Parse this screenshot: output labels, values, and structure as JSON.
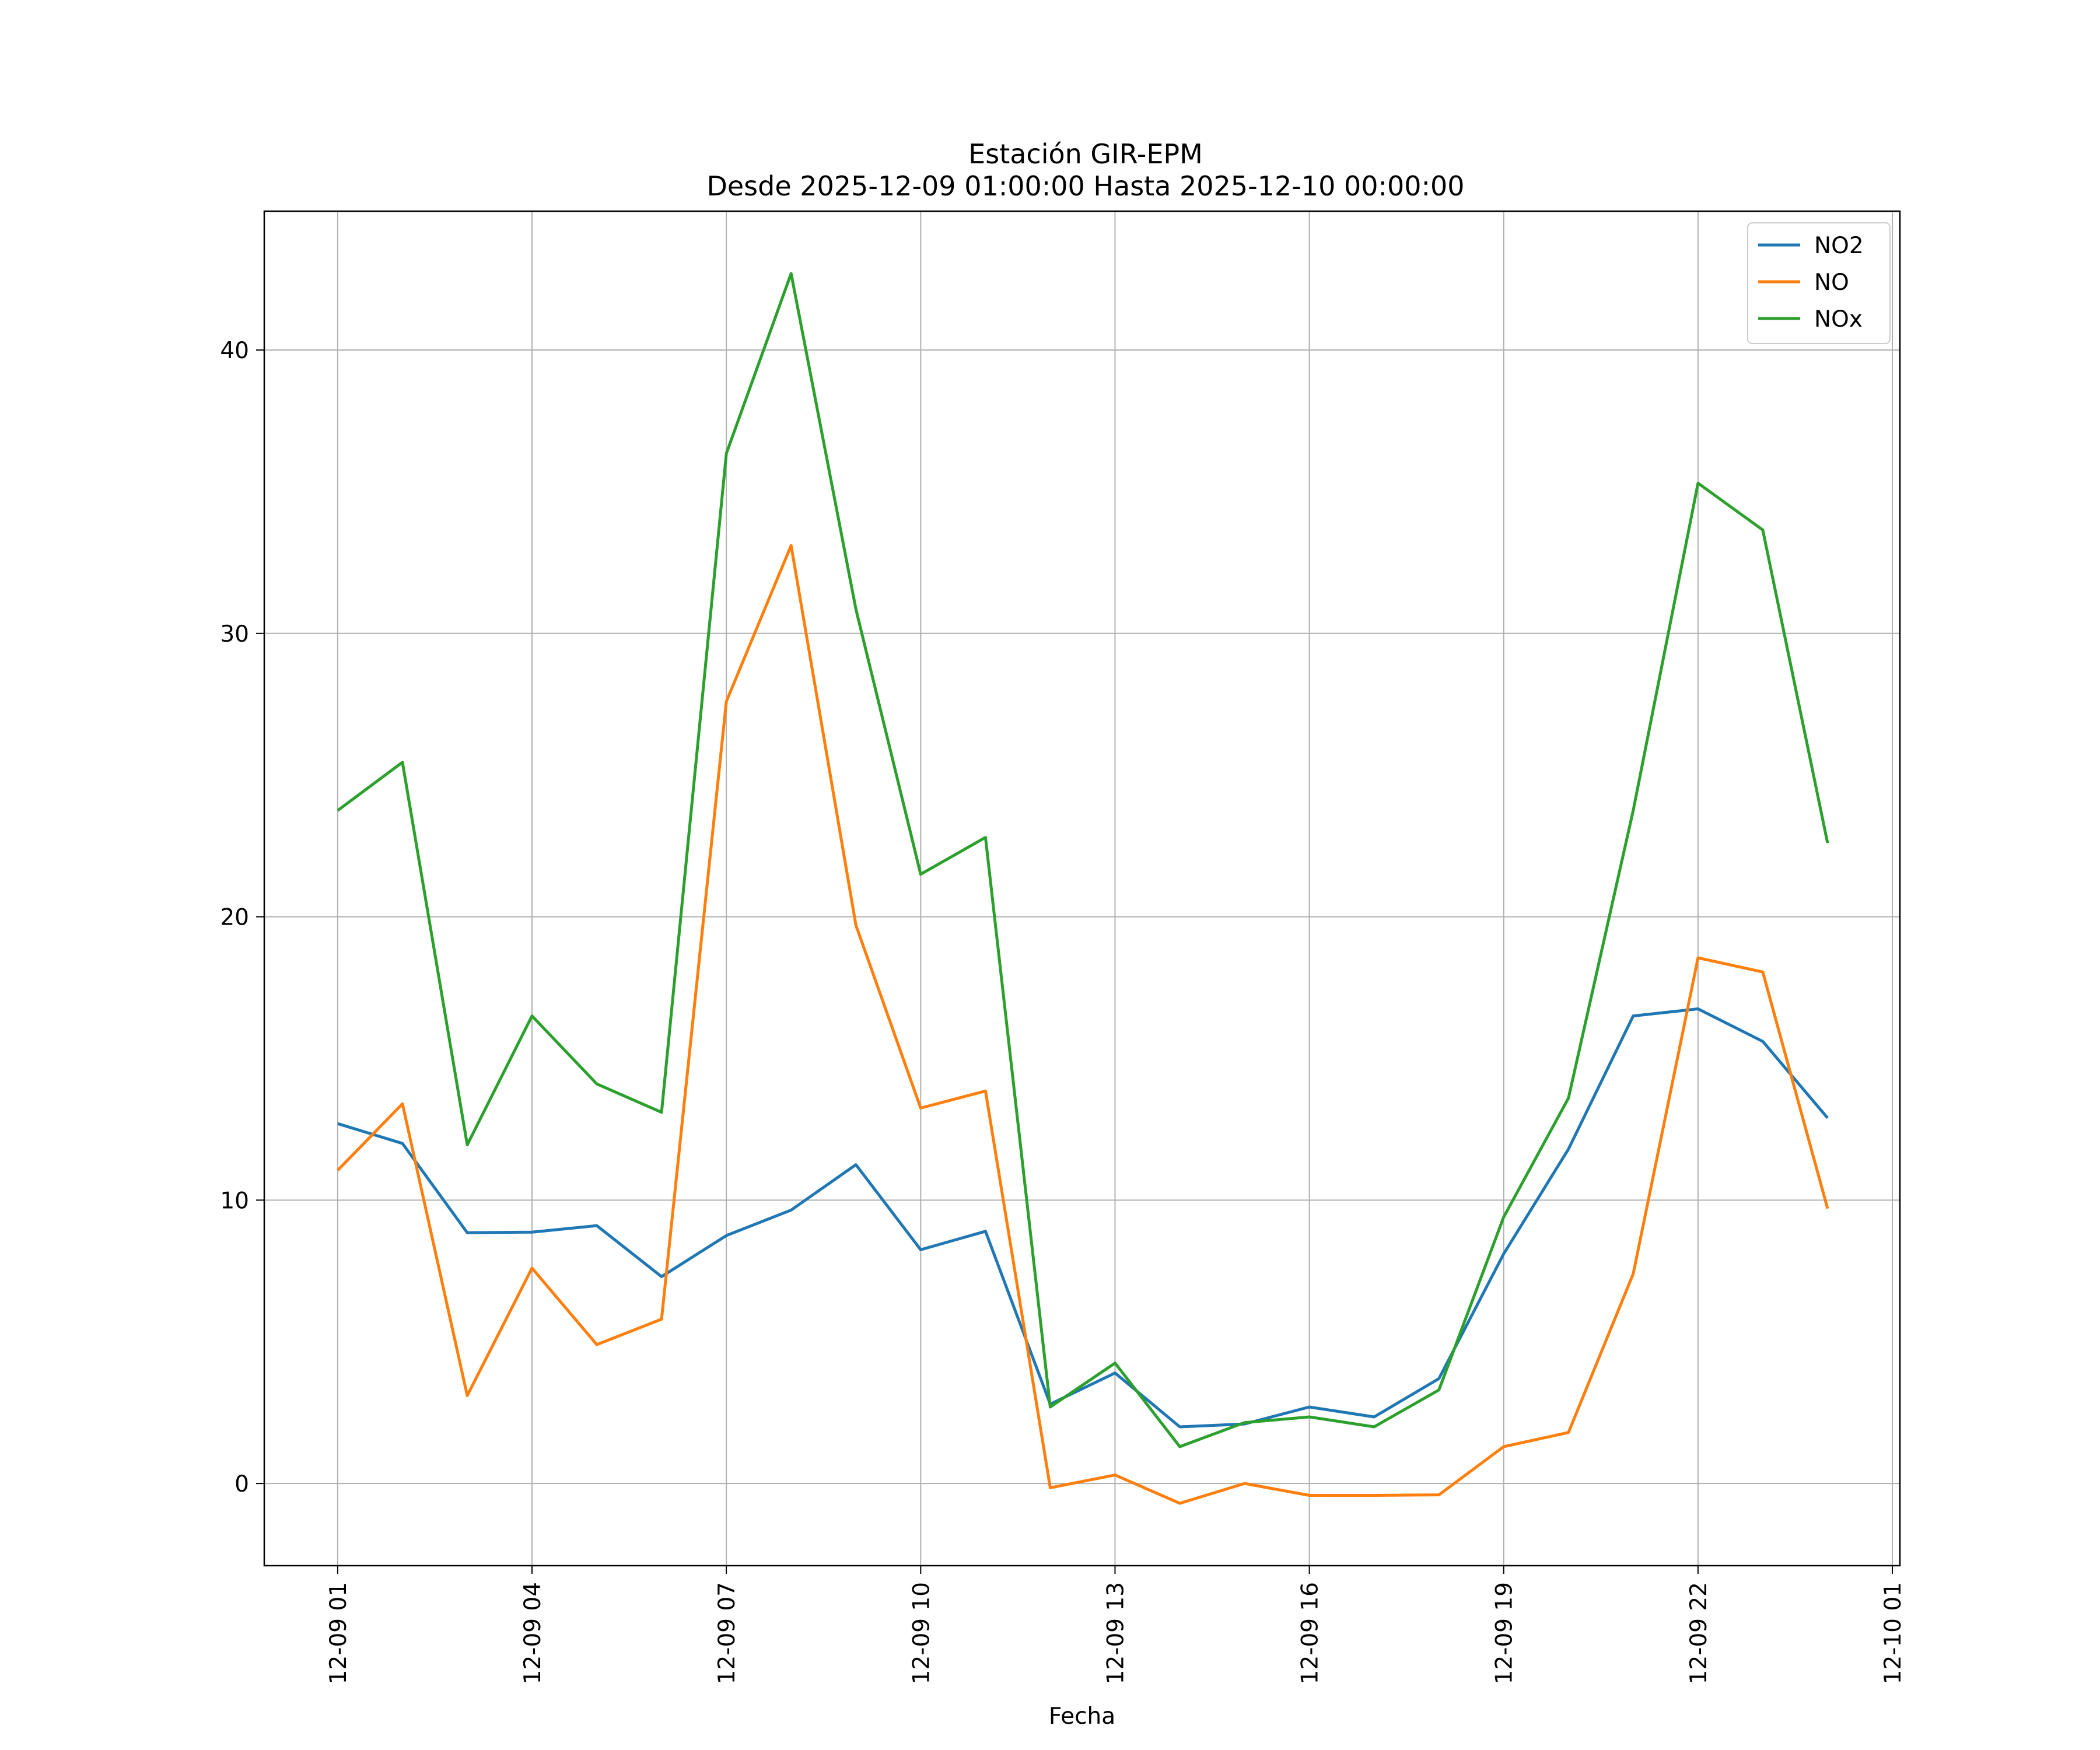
{
  "chart_data": {
    "type": "line",
    "title": "Estación GIR-EPM",
    "subtitle": "Desde 2025-12-09 01:00:00 Hasta 2025-12-10 00:00:00",
    "xlabel": "Fecha",
    "ylabel": "",
    "x": [
      "2025-12-09 01:00",
      "2025-12-09 02:00",
      "2025-12-09 03:00",
      "2025-12-09 04:00",
      "2025-12-09 05:00",
      "2025-12-09 06:00",
      "2025-12-09 07:00",
      "2025-12-09 08:00",
      "2025-12-09 09:00",
      "2025-12-09 10:00",
      "2025-12-09 11:00",
      "2025-12-09 12:00",
      "2025-12-09 13:00",
      "2025-12-09 14:00",
      "2025-12-09 15:00",
      "2025-12-09 16:00",
      "2025-12-09 17:00",
      "2025-12-09 18:00",
      "2025-12-09 19:00",
      "2025-12-09 20:00",
      "2025-12-09 21:00",
      "2025-12-09 22:00",
      "2025-12-09 23:00",
      "2025-12-10 00:00"
    ],
    "x_ticks": [
      "12-09 01",
      "12-09 04",
      "12-09 07",
      "12-09 10",
      "12-09 13",
      "12-09 16",
      "12-09 19",
      "12-09 22",
      "12-10 01"
    ],
    "x_tick_dates": [
      "2025-12-09 01:00",
      "2025-12-09 04:00",
      "2025-12-09 07:00",
      "2025-12-09 10:00",
      "2025-12-09 13:00",
      "2025-12-09 16:00",
      "2025-12-09 19:00",
      "2025-12-09 22:00",
      "2025-12-10 01:00"
    ],
    "xlim": [
      "2025-12-08 23:52",
      "2025-12-10 01:07"
    ],
    "y_ticks": [
      "0",
      "10",
      "20",
      "30",
      "40"
    ],
    "ylim": [
      -2.9,
      44.9
    ],
    "grid": true,
    "legend_position": "top-right",
    "series": [
      {
        "name": "NO2",
        "color": "#1f77b4",
        "values": [
          12.7,
          12.0,
          8.85,
          8.87,
          9.1,
          7.3,
          8.75,
          9.65,
          11.25,
          8.25,
          8.9,
          2.8,
          3.9,
          2.0,
          2.1,
          2.7,
          2.35,
          3.7,
          8.1,
          11.8,
          16.5,
          16.75,
          15.6,
          12.9
        ]
      },
      {
        "name": "NO",
        "color": "#ff7f0e",
        "values": [
          11.05,
          13.4,
          3.1,
          7.6,
          4.9,
          5.8,
          27.6,
          33.1,
          19.7,
          13.25,
          13.85,
          -0.15,
          0.3,
          -0.7,
          0.0,
          -0.42,
          -0.42,
          -0.4,
          1.3,
          1.8,
          7.4,
          18.55,
          18.05,
          9.7
        ]
      },
      {
        "name": "NOx",
        "color": "#2ca02c",
        "values": [
          23.75,
          25.45,
          11.95,
          16.5,
          14.1,
          13.1,
          36.35,
          42.7,
          30.85,
          21.5,
          22.8,
          2.7,
          4.25,
          1.3,
          2.15,
          2.35,
          2.0,
          3.3,
          9.4,
          13.6,
          23.75,
          35.3,
          33.65,
          22.6
        ]
      }
    ]
  }
}
